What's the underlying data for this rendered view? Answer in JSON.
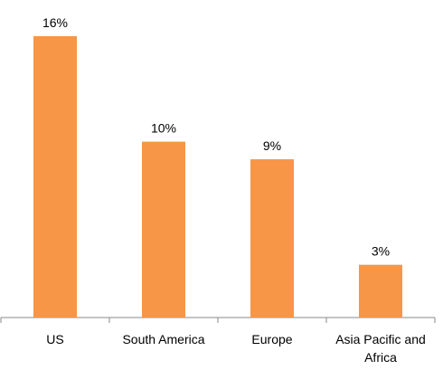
{
  "chart_data": {
    "type": "bar",
    "categories": [
      "US",
      "South America",
      "Europe",
      "Asia Pacific and Africa"
    ],
    "values": [
      16,
      10,
      9,
      3
    ],
    "value_labels": [
      "16%",
      "10%",
      "9%",
      "3%"
    ],
    "color": "#f79646"
  }
}
